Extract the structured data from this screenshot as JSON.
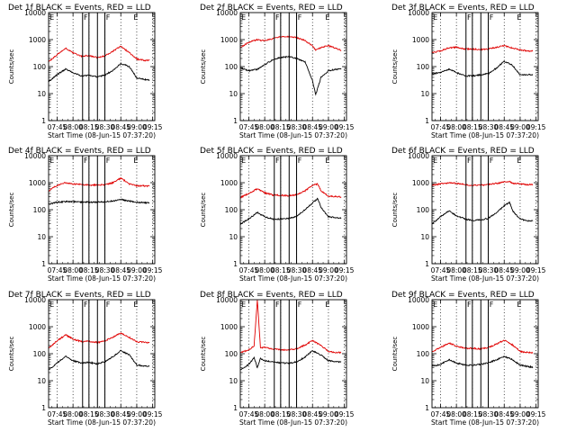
{
  "figure": {
    "common": {
      "start_time_label": "Start Time (08-Jun-15 07:37:20)",
      "ylabel": "Counts/sec",
      "x_ticks": [
        "07:45",
        "08:00",
        "08:15",
        "08:30",
        "08:45",
        "09:00",
        "09:15"
      ],
      "y_ticks": [
        "1",
        "10",
        "100",
        "1000",
        "10000"
      ]
    }
  },
  "chart_data": [
    {
      "type": "line",
      "title": "Det 1f BLACK = Events, RED = LLD",
      "xlabel": "Start Time (08-Jun-15 07:37:20)",
      "ylabel": "Counts/sec",
      "y_scale": "log",
      "ylim": [
        1,
        10000
      ],
      "xlim": [
        "07:37",
        "09:17"
      ],
      "x": [
        "07:37",
        "07:45",
        "07:53",
        "08:00",
        "08:08",
        "08:15",
        "08:23",
        "08:30",
        "08:38",
        "08:45",
        "08:53",
        "09:00",
        "09:08",
        "09:12"
      ],
      "series": [
        {
          "name": "LLD",
          "color": "#e00000",
          "values": [
            150,
            280,
            480,
            330,
            240,
            260,
            210,
            250,
            380,
            560,
            330,
            190,
            170,
            170
          ]
        },
        {
          "name": "Events",
          "color": "#000000",
          "values": [
            28,
            50,
            80,
            60,
            45,
            48,
            42,
            48,
            75,
            130,
            100,
            38,
            33,
            32
          ]
        }
      ],
      "vertical_lines": [
        "08:09",
        "08:15",
        "08:23",
        "08:30"
      ],
      "markers": [
        {
          "at": "07:38",
          "label": "E"
        },
        {
          "at": "08:10",
          "label": "F"
        },
        {
          "at": "08:31",
          "label": "F"
        },
        {
          "at": "08:57",
          "label": "E"
        }
      ]
    },
    {
      "type": "line",
      "title": "Det 2f BLACK = Events, RED = LLD",
      "xlabel": "Start Time (08-Jun-15 07:37:20)",
      "ylabel": "Counts/sec",
      "y_scale": "log",
      "ylim": [
        1,
        10000
      ],
      "xlim": [
        "07:37",
        "09:17"
      ],
      "x": [
        "07:37",
        "07:45",
        "07:53",
        "08:00",
        "08:08",
        "08:15",
        "08:23",
        "08:30",
        "08:38",
        "08:45",
        "08:48",
        "08:53",
        "09:00",
        "09:08",
        "09:12"
      ],
      "series": [
        {
          "name": "LLD",
          "color": "#e00000",
          "values": [
            500,
            800,
            1000,
            900,
            1100,
            1300,
            1300,
            1200,
            900,
            600,
            400,
            500,
            600,
            450,
            400
          ]
        },
        {
          "name": "Events",
          "color": "#000000",
          "values": [
            90,
            70,
            80,
            120,
            180,
            220,
            230,
            200,
            150,
            30,
            9,
            40,
            70,
            80,
            80
          ]
        }
      ],
      "vertical_lines": [
        "08:09",
        "08:15",
        "08:23",
        "08:30"
      ],
      "markers": [
        {
          "at": "07:38",
          "label": "E"
        },
        {
          "at": "08:10",
          "label": "F"
        },
        {
          "at": "08:31",
          "label": "F"
        },
        {
          "at": "08:57",
          "label": "E"
        }
      ]
    },
    {
      "type": "line",
      "title": "Det 3f BLACK = Events, RED = LLD",
      "xlabel": "Start Time (08-Jun-15 07:37:20)",
      "ylabel": "Counts/sec",
      "y_scale": "log",
      "ylim": [
        1,
        10000
      ],
      "xlim": [
        "07:37",
        "09:17"
      ],
      "x": [
        "07:37",
        "07:45",
        "07:53",
        "08:00",
        "08:08",
        "08:15",
        "08:23",
        "08:30",
        "08:38",
        "08:45",
        "08:53",
        "09:00",
        "09:08",
        "09:12"
      ],
      "series": [
        {
          "name": "LLD",
          "color": "#e00000",
          "values": [
            330,
            380,
            500,
            520,
            450,
            450,
            430,
            450,
            520,
            600,
            480,
            420,
            380,
            380
          ]
        },
        {
          "name": "Events",
          "color": "#000000",
          "values": [
            55,
            60,
            80,
            60,
            45,
            45,
            50,
            55,
            90,
            160,
            110,
            50,
            50,
            50
          ]
        }
      ],
      "vertical_lines": [
        "08:09",
        "08:15",
        "08:23",
        "08:30"
      ],
      "markers": [
        {
          "at": "07:38",
          "label": "E"
        },
        {
          "at": "08:10",
          "label": "F"
        },
        {
          "at": "08:31",
          "label": "F"
        },
        {
          "at": "08:57",
          "label": "E"
        }
      ]
    },
    {
      "type": "line",
      "title": "Det 4f BLACK = Events, RED = LLD",
      "xlabel": "Start Time (08-Jun-15 07:37:20)",
      "ylabel": "Counts/sec",
      "y_scale": "log",
      "ylim": [
        1,
        10000
      ],
      "xlim": [
        "07:37",
        "09:17"
      ],
      "x": [
        "07:37",
        "07:45",
        "07:53",
        "08:00",
        "08:08",
        "08:15",
        "08:23",
        "08:30",
        "08:38",
        "08:45",
        "08:53",
        "09:00",
        "09:08",
        "09:12"
      ],
      "series": [
        {
          "name": "LLD",
          "color": "#e00000",
          "values": [
            500,
            800,
            1000,
            900,
            850,
            820,
            820,
            850,
            1000,
            1500,
            900,
            780,
            760,
            760
          ]
        },
        {
          "name": "Events",
          "color": "#000000",
          "values": [
            160,
            190,
            200,
            200,
            190,
            190,
            190,
            195,
            210,
            240,
            210,
            190,
            180,
            180
          ]
        }
      ],
      "vertical_lines": [
        "08:09",
        "08:15",
        "08:23",
        "08:30"
      ],
      "markers": [
        {
          "at": "07:38",
          "label": "E"
        },
        {
          "at": "08:10",
          "label": "F"
        },
        {
          "at": "08:31",
          "label": "F"
        },
        {
          "at": "08:57",
          "label": "E"
        }
      ]
    },
    {
      "type": "line",
      "title": "Det 5f BLACK = Events, RED = LLD",
      "xlabel": "Start Time (08-Jun-15 07:37:20)",
      "ylabel": "Counts/sec",
      "y_scale": "log",
      "ylim": [
        1,
        10000
      ],
      "xlim": [
        "07:37",
        "09:17"
      ],
      "x": [
        "07:37",
        "07:45",
        "07:53",
        "08:00",
        "08:08",
        "08:15",
        "08:23",
        "08:30",
        "08:38",
        "08:45",
        "08:50",
        "08:53",
        "09:00",
        "09:08",
        "09:12"
      ],
      "series": [
        {
          "name": "LLD",
          "color": "#e00000",
          "values": [
            280,
            400,
            600,
            420,
            350,
            340,
            330,
            360,
            500,
            800,
            900,
            500,
            320,
            300,
            300
          ]
        },
        {
          "name": "Events",
          "color": "#000000",
          "values": [
            30,
            45,
            80,
            55,
            45,
            45,
            48,
            55,
            100,
            180,
            260,
            120,
            55,
            50,
            50
          ]
        }
      ],
      "vertical_lines": [
        "08:09",
        "08:15",
        "08:23",
        "08:30"
      ],
      "markers": [
        {
          "at": "07:38",
          "label": "E"
        },
        {
          "at": "08:10",
          "label": "F"
        },
        {
          "at": "08:31",
          "label": "F"
        },
        {
          "at": "08:57",
          "label": "E"
        }
      ]
    },
    {
      "type": "line",
      "title": "Det 6f BLACK = Events, RED = LLD",
      "xlabel": "Start Time (08-Jun-15 07:37:20)",
      "ylabel": "Counts/sec",
      "y_scale": "log",
      "ylim": [
        1,
        10000
      ],
      "xlim": [
        "07:37",
        "09:17"
      ],
      "x": [
        "07:37",
        "07:45",
        "07:53",
        "08:00",
        "08:08",
        "08:15",
        "08:23",
        "08:30",
        "08:38",
        "08:45",
        "08:50",
        "08:53",
        "09:00",
        "09:08",
        "09:12"
      ],
      "series": [
        {
          "name": "LLD",
          "color": "#e00000",
          "values": [
            800,
            900,
            1000,
            950,
            850,
            800,
            820,
            850,
            950,
            1050,
            1100,
            950,
            900,
            850,
            850
          ]
        },
        {
          "name": "Events",
          "color": "#000000",
          "values": [
            30,
            55,
            90,
            60,
            45,
            40,
            42,
            48,
            80,
            140,
            190,
            90,
            45,
            38,
            38
          ]
        }
      ],
      "vertical_lines": [
        "08:09",
        "08:15",
        "08:23",
        "08:30"
      ],
      "markers": [
        {
          "at": "07:38",
          "label": "E"
        },
        {
          "at": "08:10",
          "label": "F"
        },
        {
          "at": "08:31",
          "label": "F"
        },
        {
          "at": "08:57",
          "label": "E"
        }
      ]
    },
    {
      "type": "line",
      "title": "Det 7f BLACK = Events, RED = LLD",
      "xlabel": "Start Time (08-Jun-15 07:37:20)",
      "ylabel": "Counts/sec",
      "y_scale": "log",
      "ylim": [
        1,
        10000
      ],
      "xlim": [
        "07:37",
        "09:17"
      ],
      "x": [
        "07:37",
        "07:45",
        "07:53",
        "08:00",
        "08:08",
        "08:15",
        "08:23",
        "08:30",
        "08:38",
        "08:45",
        "08:53",
        "09:00",
        "09:08",
        "09:12"
      ],
      "series": [
        {
          "name": "LLD",
          "color": "#e00000",
          "values": [
            160,
            300,
            500,
            350,
            280,
            290,
            260,
            300,
            420,
            580,
            400,
            280,
            260,
            260
          ]
        },
        {
          "name": "Events",
          "color": "#000000",
          "values": [
            25,
            45,
            80,
            55,
            45,
            48,
            42,
            50,
            80,
            130,
            90,
            38,
            35,
            35
          ]
        }
      ],
      "vertical_lines": [
        "08:09",
        "08:15",
        "08:23",
        "08:30"
      ],
      "markers": [
        {
          "at": "07:38",
          "label": "E"
        },
        {
          "at": "08:10",
          "label": "F"
        },
        {
          "at": "08:31",
          "label": "F"
        },
        {
          "at": "08:57",
          "label": "E"
        }
      ]
    },
    {
      "type": "line",
      "title": "Det 8f BLACK = Events, RED = LLD",
      "xlabel": "Start Time (08-Jun-15 07:37:20)",
      "ylabel": "Counts/sec",
      "y_scale": "log",
      "ylim": [
        1,
        10000
      ],
      "xlim": [
        "07:37",
        "09:17"
      ],
      "x": [
        "07:37",
        "07:45",
        "07:50",
        "07:53",
        "07:56",
        "08:00",
        "08:08",
        "08:15",
        "08:23",
        "08:30",
        "08:38",
        "08:45",
        "08:53",
        "09:00",
        "09:08",
        "09:12"
      ],
      "series": [
        {
          "name": "LLD",
          "color": "#e00000",
          "values": [
            110,
            140,
            190,
            10000,
            170,
            170,
            150,
            140,
            140,
            150,
            210,
            300,
            200,
            120,
            110,
            110
          ]
        },
        {
          "name": "Events",
          "color": "#000000",
          "values": [
            25,
            40,
            70,
            30,
            65,
            55,
            50,
            45,
            45,
            50,
            75,
            130,
            90,
            55,
            50,
            50
          ]
        }
      ],
      "vertical_lines": [
        "08:09",
        "08:15",
        "08:23",
        "08:30"
      ],
      "markers": [
        {
          "at": "07:38",
          "label": "E"
        },
        {
          "at": "08:10",
          "label": "F"
        },
        {
          "at": "08:31",
          "label": "F"
        },
        {
          "at": "08:57",
          "label": "E"
        }
      ]
    },
    {
      "type": "line",
      "title": "Det 9f BLACK = Events, RED = LLD",
      "xlabel": "Start Time (08-Jun-15 07:37:20)",
      "ylabel": "Counts/sec",
      "y_scale": "log",
      "ylim": [
        1,
        10000
      ],
      "xlim": [
        "07:37",
        "09:17"
      ],
      "x": [
        "07:37",
        "07:45",
        "07:53",
        "08:00",
        "08:08",
        "08:15",
        "08:23",
        "08:30",
        "08:38",
        "08:45",
        "08:53",
        "09:00",
        "09:08",
        "09:12"
      ],
      "series": [
        {
          "name": "LLD",
          "color": "#e00000",
          "values": [
            120,
            170,
            250,
            190,
            160,
            160,
            150,
            170,
            230,
            320,
            210,
            120,
            110,
            110
          ]
        },
        {
          "name": "Events",
          "color": "#000000",
          "values": [
            35,
            40,
            60,
            45,
            38,
            38,
            40,
            45,
            60,
            80,
            60,
            38,
            33,
            32
          ]
        }
      ],
      "vertical_lines": [
        "08:09",
        "08:15",
        "08:23",
        "08:30"
      ],
      "markers": [
        {
          "at": "07:38",
          "label": "E"
        },
        {
          "at": "08:10",
          "label": "F"
        },
        {
          "at": "08:31",
          "label": "F"
        },
        {
          "at": "08:57",
          "label": "E"
        }
      ]
    }
  ]
}
